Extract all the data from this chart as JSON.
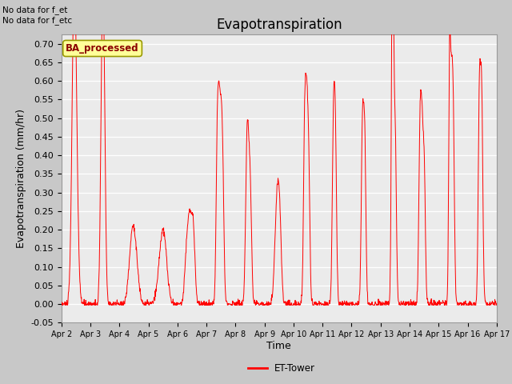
{
  "title": "Evapotranspiration",
  "ylabel": "Evapotranspiration (mm/hr)",
  "xlabel": "Time",
  "ylim": [
    -0.05,
    0.725
  ],
  "yticks": [
    -0.05,
    0.0,
    0.05,
    0.1,
    0.15,
    0.2,
    0.25,
    0.3,
    0.35,
    0.4,
    0.45,
    0.5,
    0.55,
    0.6,
    0.65,
    0.7
  ],
  "xtick_labels": [
    "Apr 2",
    "Apr 3",
    "Apr 4",
    "Apr 5",
    "Apr 6",
    "Apr 7",
    "Apr 8",
    "Apr 9",
    "Apr 10",
    "Apr 11",
    "Apr 12",
    "Apr 13",
    "Apr 14",
    "Apr 15",
    "Apr 16",
    "Apr 17"
  ],
  "line_color": "#FF0000",
  "line_label": "ET-Tower",
  "fig_facecolor": "#C8C8C8",
  "plot_facecolor": "#EBEBEB",
  "annotation_text": "No data for f_et\nNo data for f_etc",
  "box_label": "BA_processed",
  "box_facecolor": "#FFFF99",
  "box_edgecolor": "#999900",
  "title_fontsize": 12,
  "axis_label_fontsize": 9,
  "tick_fontsize": 8,
  "n_days": 15,
  "pts_per_day": 96
}
